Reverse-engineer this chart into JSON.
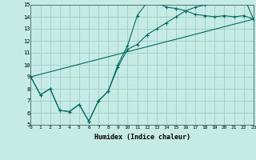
{
  "xlabel": "Humidex (Indice chaleur)",
  "xlim": [
    0,
    23
  ],
  "ylim": [
    5,
    15
  ],
  "xticks": [
    0,
    1,
    2,
    3,
    4,
    5,
    6,
    7,
    8,
    9,
    10,
    11,
    12,
    13,
    14,
    15,
    16,
    17,
    18,
    19,
    20,
    21,
    22,
    23
  ],
  "yticks": [
    5,
    6,
    7,
    8,
    9,
    10,
    11,
    12,
    13,
    14,
    15
  ],
  "bg_color": "#c5ebe4",
  "grid_color": "#9ecec7",
  "line_color": "#006b60",
  "line1_x": [
    0,
    1,
    2,
    3,
    4,
    5,
    6,
    7,
    8,
    9,
    10,
    11,
    12,
    13,
    14,
    15,
    16,
    17,
    18,
    19,
    20,
    21,
    22,
    23
  ],
  "line1_y": [
    9.0,
    7.5,
    8.0,
    6.2,
    6.1,
    6.7,
    5.3,
    7.0,
    7.8,
    10.0,
    11.6,
    14.1,
    15.2,
    15.2,
    14.8,
    14.7,
    14.5,
    14.2,
    14.1,
    14.0,
    14.1,
    14.0,
    14.1,
    13.8
  ],
  "line2_x": [
    0,
    1,
    2,
    3,
    4,
    5,
    6,
    7,
    8,
    9,
    10,
    11,
    12,
    13,
    14,
    15,
    16,
    17,
    18,
    19,
    20,
    21,
    22,
    23
  ],
  "line2_y": [
    9.0,
    7.5,
    8.0,
    6.2,
    6.1,
    6.7,
    5.3,
    7.0,
    7.8,
    9.8,
    11.3,
    11.7,
    12.5,
    13.0,
    13.5,
    14.0,
    14.5,
    14.8,
    15.0,
    15.2,
    15.4,
    15.6,
    15.7,
    13.8
  ],
  "line3_x": [
    0,
    23
  ],
  "line3_y": [
    9.0,
    13.8
  ],
  "figsize": [
    3.2,
    2.0
  ],
  "dpi": 100
}
